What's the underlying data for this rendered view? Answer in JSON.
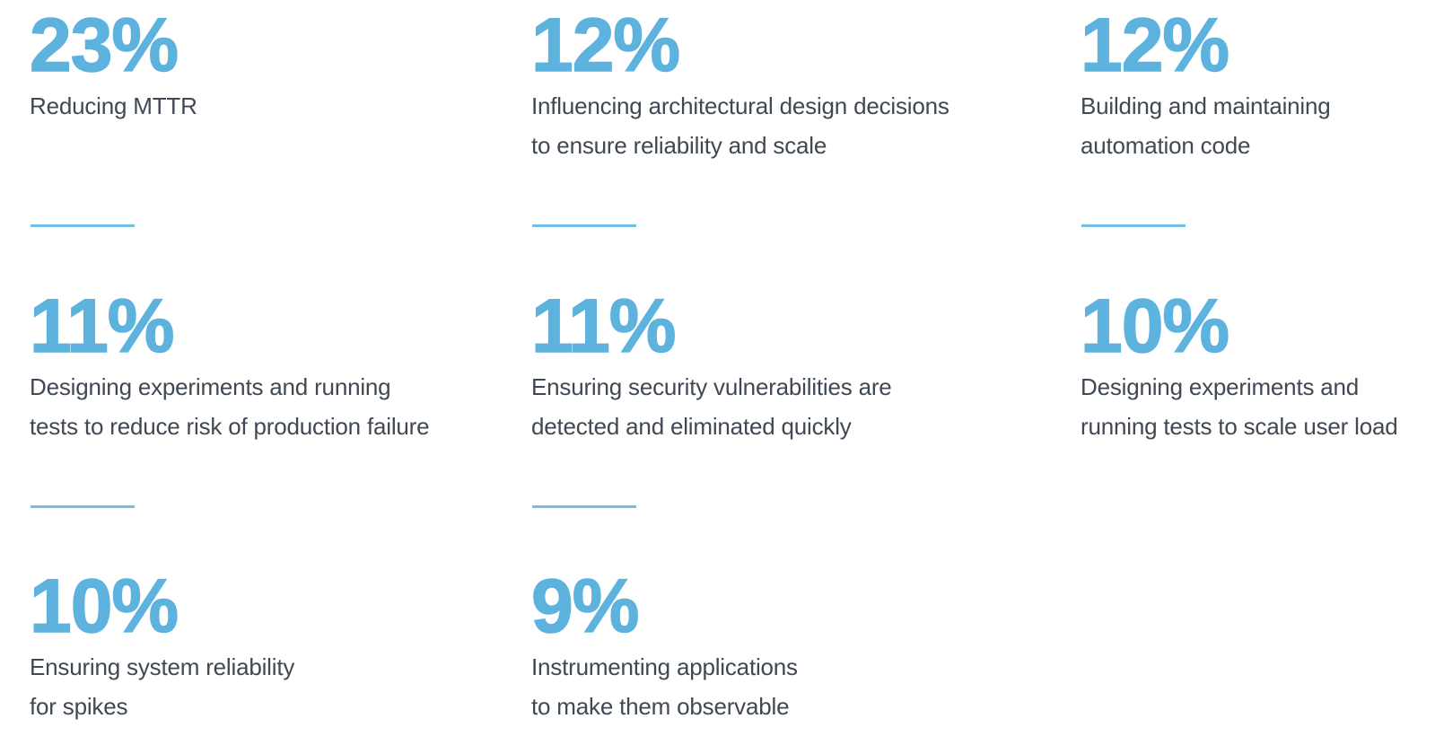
{
  "colors": {
    "accent_blue": "#5db2de",
    "divider_blue": "#74bfe5",
    "text_dark": "#3f4853",
    "background": "#ffffff"
  },
  "stats": [
    {
      "value": "23%",
      "label": "Reducing MTTR",
      "divider": true
    },
    {
      "value": "12%",
      "label": "Influencing architectural design decisions\nto ensure reliability and scale",
      "divider": true
    },
    {
      "value": "12%",
      "label": "Building and maintaining\nautomation code",
      "divider": true
    },
    {
      "value": "11%",
      "label": "Designing experiments and running\ntests to reduce risk of production failure",
      "divider": true
    },
    {
      "value": "11%",
      "label": "Ensuring security vulnerabilities are\ndetected and eliminated quickly",
      "divider": true
    },
    {
      "value": "10%",
      "label": "Designing experiments and\nrunning tests to scale user load",
      "divider": false
    },
    {
      "value": "10%",
      "label": "Ensuring system reliability\nfor spikes",
      "divider": false
    },
    {
      "value": "9%",
      "label": "Instrumenting applications\nto make them observable",
      "divider": false
    }
  ],
  "chart_data": {
    "type": "table",
    "title": "",
    "categories": [
      "Reducing MTTR",
      "Influencing architectural design decisions to ensure reliability and scale",
      "Building and maintaining automation code",
      "Designing experiments and running tests to reduce risk of production failure",
      "Ensuring security vulnerabilities are detected and eliminated quickly",
      "Designing experiments and running tests to scale user load",
      "Ensuring system reliability for spikes",
      "Instrumenting applications to make them observable"
    ],
    "values": [
      23,
      12,
      12,
      11,
      11,
      10,
      10,
      9
    ],
    "unit": "%",
    "legend_position": "none",
    "grid": false
  }
}
